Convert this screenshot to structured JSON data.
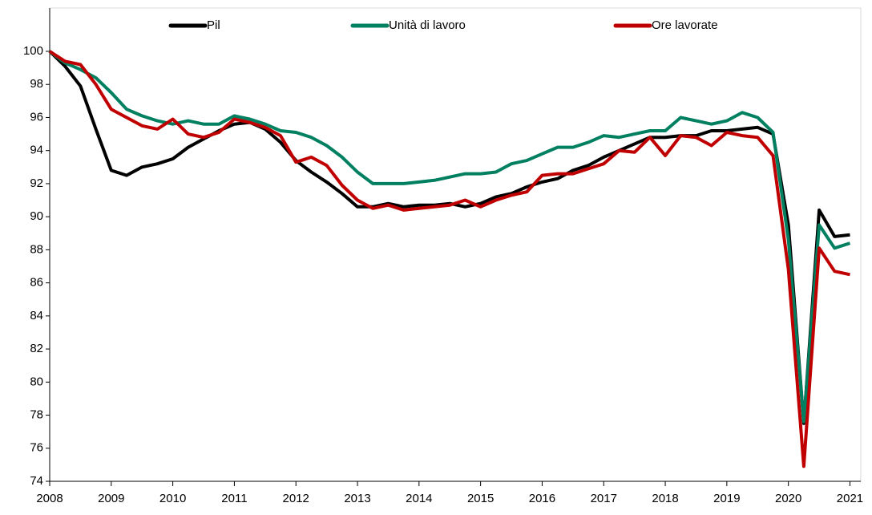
{
  "chart_data": {
    "type": "line",
    "x": [
      2008,
      2008.25,
      2008.5,
      2008.75,
      2009,
      2009.25,
      2009.5,
      2009.75,
      2010,
      2010.25,
      2010.5,
      2010.75,
      2011,
      2011.25,
      2011.5,
      2011.75,
      2012,
      2012.25,
      2012.5,
      2012.75,
      2013,
      2013.25,
      2013.5,
      2013.75,
      2014,
      2014.25,
      2014.5,
      2014.75,
      2015,
      2015.25,
      2015.5,
      2015.75,
      2016,
      2016.25,
      2016.5,
      2016.75,
      2017,
      2017.25,
      2017.5,
      2017.75,
      2018,
      2018.25,
      2018.5,
      2018.75,
      2019,
      2019.25,
      2019.5,
      2019.75,
      2020,
      2020.25,
      2020.5,
      2020.75,
      2021
    ],
    "series": [
      {
        "name": "Pil",
        "color": "#000000",
        "values": [
          100,
          99.1,
          97.9,
          95.3,
          92.8,
          92.5,
          93.0,
          93.2,
          93.5,
          94.2,
          94.7,
          95.2,
          95.6,
          95.7,
          95.3,
          94.5,
          93.4,
          92.7,
          92.1,
          91.4,
          90.6,
          90.6,
          90.8,
          90.6,
          90.7,
          90.7,
          90.8,
          90.6,
          90.8,
          91.2,
          91.4,
          91.8,
          92.1,
          92.3,
          92.8,
          93.1,
          93.6,
          94.0,
          94.4,
          94.8,
          94.8,
          94.9,
          94.9,
          95.2,
          95.2,
          95.3,
          95.4,
          95.0,
          89.5,
          77.5,
          90.4,
          88.8,
          88.9
        ]
      },
      {
        "name": "Unità di lavoro",
        "color": "#008060",
        "values": [
          100,
          99.3,
          98.9,
          98.4,
          97.5,
          96.5,
          96.1,
          95.8,
          95.6,
          95.8,
          95.6,
          95.6,
          96.1,
          95.9,
          95.6,
          95.2,
          95.1,
          94.8,
          94.3,
          93.6,
          92.7,
          92.0,
          92.0,
          92.0,
          92.1,
          92.2,
          92.4,
          92.6,
          92.6,
          92.7,
          93.2,
          93.4,
          93.8,
          94.2,
          94.2,
          94.5,
          94.9,
          94.8,
          95.0,
          95.2,
          95.2,
          96.0,
          95.8,
          95.6,
          95.8,
          96.3,
          96.0,
          95.1,
          88.6,
          77.6,
          89.5,
          88.1,
          88.4
        ]
      },
      {
        "name": "Ore lavorate",
        "color": "#c00000",
        "values": [
          100,
          99.4,
          99.2,
          98.0,
          96.5,
          96.0,
          95.5,
          95.3,
          95.9,
          95.0,
          94.8,
          95.1,
          95.9,
          95.7,
          95.4,
          94.9,
          93.3,
          93.6,
          93.1,
          91.9,
          91.0,
          90.5,
          90.7,
          90.4,
          90.5,
          90.6,
          90.7,
          91.0,
          90.6,
          91.0,
          91.3,
          91.5,
          92.5,
          92.6,
          92.6,
          92.9,
          93.2,
          94.0,
          93.9,
          94.8,
          93.7,
          94.9,
          94.8,
          94.3,
          95.1,
          94.9,
          94.8,
          93.7,
          86.8,
          74.9,
          88.1,
          86.7,
          86.5
        ]
      }
    ],
    "xlim": [
      2008,
      2021.15
    ],
    "xticks": [
      2008,
      2009,
      2010,
      2011,
      2012,
      2013,
      2014,
      2015,
      2016,
      2017,
      2018,
      2019,
      2020,
      2021
    ],
    "ylim": [
      74,
      100
    ],
    "yticks": [
      74,
      76,
      78,
      80,
      82,
      84,
      86,
      88,
      90,
      92,
      94,
      96,
      98,
      100
    ],
    "legend": "top"
  }
}
